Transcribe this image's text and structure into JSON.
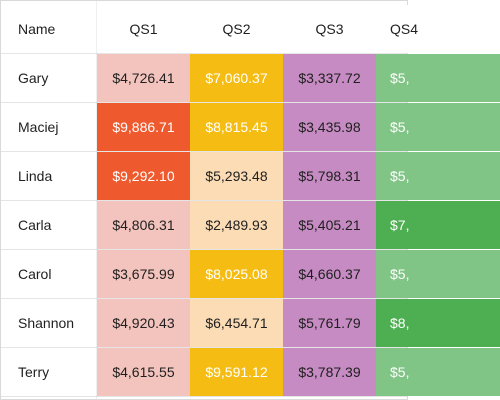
{
  "grid": {
    "columns": [
      "Name",
      "QS1",
      "QS2",
      "QS3",
      "QS4"
    ],
    "rows": [
      {
        "name": "Gary",
        "values": [
          "$4,726.41",
          "$7,060.37",
          "$3,337.72",
          "$5,"
        ]
      },
      {
        "name": "Maciej",
        "values": [
          "$9,886.71",
          "$8,815.45",
          "$3,435.98",
          "$5,"
        ]
      },
      {
        "name": "Linda",
        "values": [
          "$9,292.10",
          "$5,293.48",
          "$5,798.31",
          "$5,"
        ]
      },
      {
        "name": "Carla",
        "values": [
          "$4,806.31",
          "$2,489.93",
          "$5,405.21",
          "$7,"
        ]
      },
      {
        "name": "Carol",
        "values": [
          "$3,675.99",
          "$8,025.08",
          "$4,660.37",
          "$5,"
        ]
      },
      {
        "name": "Shannon",
        "values": [
          "$4,920.43",
          "$6,454.71",
          "$5,761.79",
          "$8,"
        ]
      },
      {
        "name": "Terry",
        "values": [
          "$4,615.55",
          "$9,591.12",
          "$3,787.39",
          "$5,"
        ]
      }
    ],
    "cell_colors": [
      [
        "#f3c4bd",
        "#f5bd14",
        "#c68bc2",
        "#80c585"
      ],
      [
        "#ee5a2e",
        "#f5bd14",
        "#c68bc2",
        "#80c585"
      ],
      [
        "#ee5a2e",
        "#fbdcb5",
        "#c68bc2",
        "#80c585"
      ],
      [
        "#f3c4bd",
        "#fbdcb5",
        "#c68bc2",
        "#4eaf52"
      ],
      [
        "#f3c4bd",
        "#f5bd14",
        "#c68bc2",
        "#80c585"
      ],
      [
        "#f3c4bd",
        "#fbdcb5",
        "#c68bc2",
        "#4eaf52"
      ],
      [
        "#f3c4bd",
        "#f5bd14",
        "#c68bc2",
        "#80c585"
      ]
    ],
    "text_colors": [
      [
        "#1f1f1f",
        "#ffffff",
        "#1f1f1f",
        "#ffffff"
      ],
      [
        "#ffffff",
        "#ffffff",
        "#1f1f1f",
        "#ffffff"
      ],
      [
        "#ffffff",
        "#1f1f1f",
        "#1f1f1f",
        "#ffffff"
      ],
      [
        "#1f1f1f",
        "#1f1f1f",
        "#1f1f1f",
        "#ffffff"
      ],
      [
        "#1f1f1f",
        "#ffffff",
        "#1f1f1f",
        "#ffffff"
      ],
      [
        "#1f1f1f",
        "#1f1f1f",
        "#1f1f1f",
        "#ffffff"
      ],
      [
        "#1f1f1f",
        "#ffffff",
        "#1f1f1f",
        "#ffffff"
      ]
    ]
  }
}
